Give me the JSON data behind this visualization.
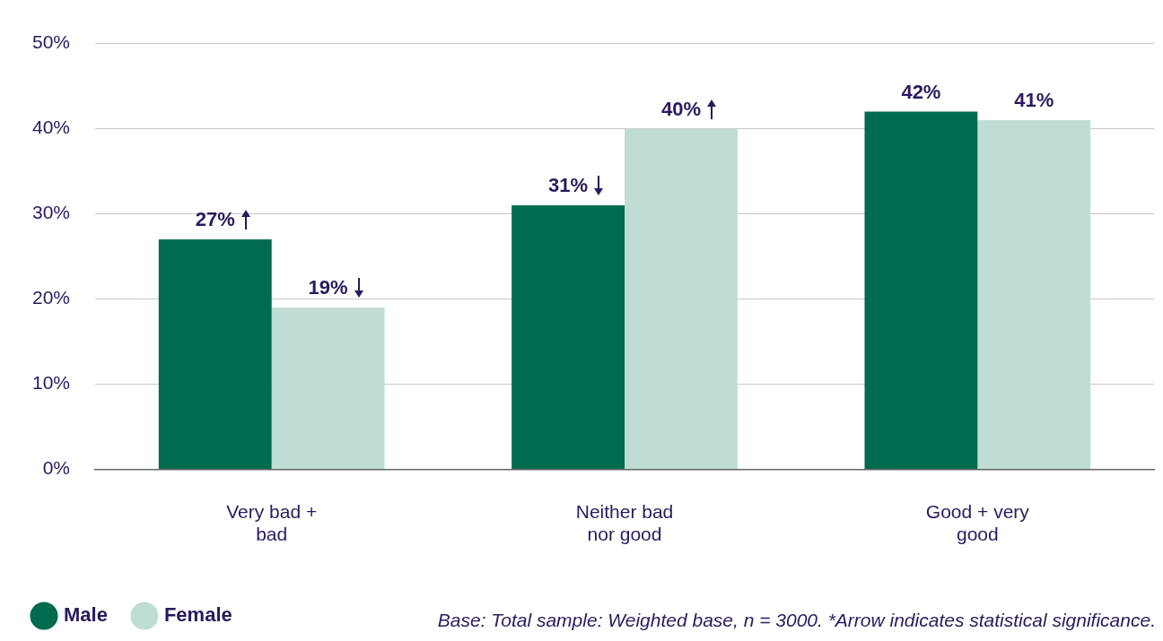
{
  "chart_data": {
    "type": "bar",
    "categories": [
      "Very bad + bad",
      "Neither bad nor good",
      "Good + very good"
    ],
    "series": [
      {
        "name": "Male",
        "color": "#006b4f",
        "values": [
          27,
          31,
          42
        ],
        "value_labels": [
          "27%",
          "31%",
          "42%"
        ]
      },
      {
        "name": "Female",
        "color": "#bfddd5",
        "values": [
          19,
          40,
          41
        ],
        "value_labels": [
          "19%",
          "40%",
          "41%"
        ]
      }
    ],
    "ylim": [
      0,
      50
    ],
    "yticks": [
      {
        "value": 0,
        "label": "0%"
      },
      {
        "value": 10,
        "label": "10%"
      },
      {
        "value": 20,
        "label": "20%"
      },
      {
        "value": 30,
        "label": "30%"
      },
      {
        "value": 40,
        "label": "40%"
      },
      {
        "value": 50,
        "label": "50%"
      }
    ],
    "grid": "y",
    "legend": "bottom left",
    "annotations": [
      "Base: Total sample: Weighted base, n = 3000. *Arrow indicates statistical significance."
    ]
  }
}
